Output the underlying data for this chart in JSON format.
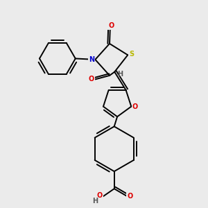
{
  "background_color": "#ebebeb",
  "fig_width": 3.0,
  "fig_height": 3.0,
  "dpi": 100,
  "atom_colors": {
    "S": "#b8b800",
    "N": "#0000cc",
    "O": "#dd0000",
    "C": "#000000",
    "H": "#555555"
  },
  "bond_color": "#000000",
  "bond_width": 1.4
}
